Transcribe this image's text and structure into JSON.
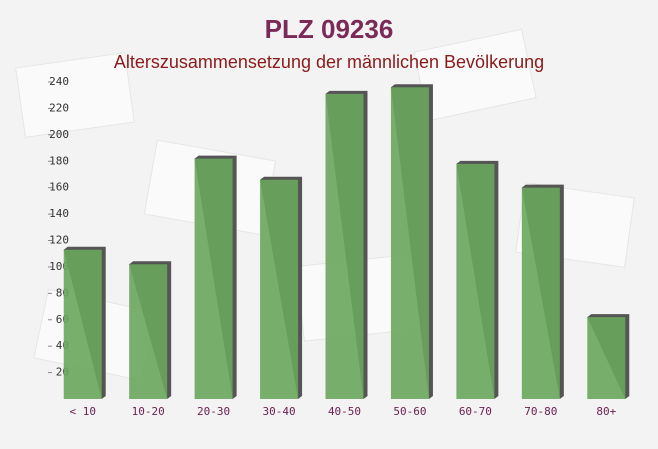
{
  "chart_data": {
    "type": "bar",
    "title": "PLZ 09236",
    "subtitle": "Alterszusammensetzung der männlichen Bevölkerung",
    "categories": [
      "< 10",
      "10-20",
      "20-30",
      "30-40",
      "40-50",
      "50-60",
      "60-70",
      "70-80",
      "80+"
    ],
    "values": [
      113,
      102,
      182,
      166,
      231,
      236,
      178,
      160,
      62
    ],
    "color": "#6aa65c",
    "ylim": [
      0,
      240
    ],
    "yticks": [
      20,
      40,
      60,
      80,
      100,
      120,
      140,
      160,
      180,
      200,
      220,
      240
    ]
  }
}
